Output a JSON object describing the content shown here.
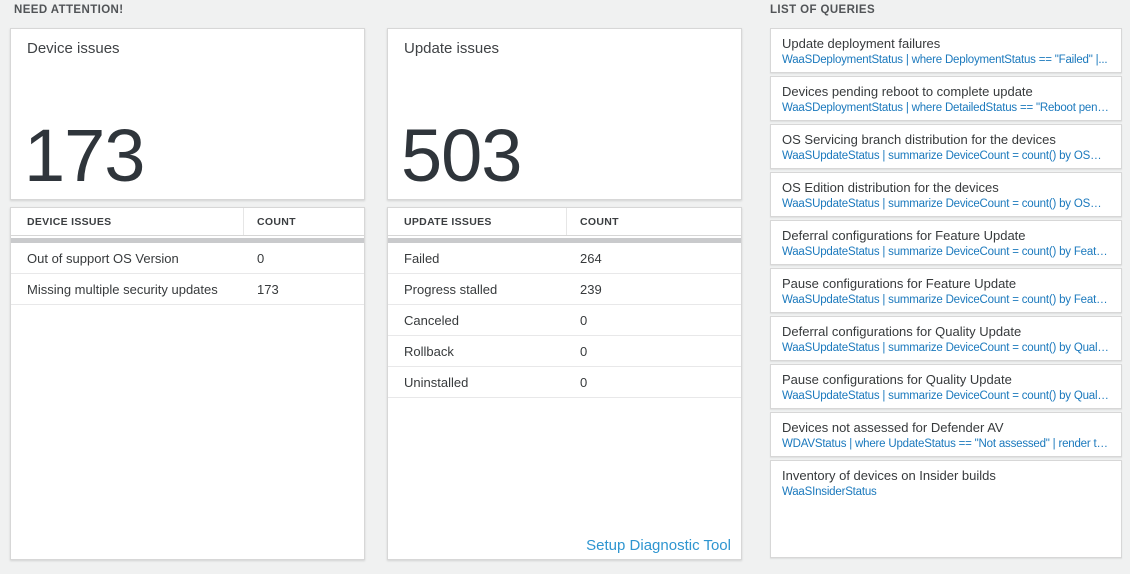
{
  "sections": {
    "need_attention": {
      "label": "NEED ATTENTION!"
    },
    "list_of_queries": {
      "label": "LIST OF QUERIES"
    }
  },
  "device_card": {
    "title": "Device issues",
    "count": "173"
  },
  "device_table": {
    "headers": [
      "DEVICE ISSUES",
      "COUNT"
    ],
    "rows": [
      {
        "label": "Out of support OS Version",
        "count": "0"
      },
      {
        "label": "Missing multiple security updates",
        "count": "173"
      }
    ]
  },
  "update_card": {
    "title": "Update issues",
    "count": "503"
  },
  "update_table": {
    "headers": [
      "UPDATE ISSUES",
      "COUNT"
    ],
    "rows": [
      {
        "label": "Failed",
        "count": "264"
      },
      {
        "label": "Progress stalled",
        "count": "239"
      },
      {
        "label": "Canceled",
        "count": "0"
      },
      {
        "label": "Rollback",
        "count": "0"
      },
      {
        "label": "Uninstalled",
        "count": "0"
      }
    ],
    "link": "Setup Diagnostic Tool"
  },
  "queries": [
    {
      "title": "Update deployment failures",
      "query": "WaaSDeploymentStatus | where DeploymentStatus == \"Failed\" |..."
    },
    {
      "title": "Devices pending reboot to complete update",
      "query": "WaaSDeploymentStatus | where DetailedStatus == \"Reboot pend..."
    },
    {
      "title": "OS Servicing branch distribution for the devices",
      "query": "WaaSUpdateStatus | summarize DeviceCount = count() by OSSer..."
    },
    {
      "title": "OS Edition distribution for the devices",
      "query": "WaaSUpdateStatus | summarize DeviceCount = count() by OSEdit..."
    },
    {
      "title": "Deferral configurations for Feature Update",
      "query": "WaaSUpdateStatus | summarize DeviceCount = count() by Featur..."
    },
    {
      "title": "Pause configurations for Feature Update",
      "query": "WaaSUpdateStatus | summarize DeviceCount = count() by Featur..."
    },
    {
      "title": "Deferral configurations for Quality Update",
      "query": "WaaSUpdateStatus | summarize DeviceCount = count() by Qualit..."
    },
    {
      "title": "Pause configurations for Quality Update",
      "query": "WaaSUpdateStatus | summarize DeviceCount = count() by Qualit..."
    },
    {
      "title": "Devices not assessed for Defender AV",
      "query": "WDAVStatus | where UpdateStatus == \"Not assessed\" | render ta..."
    },
    {
      "title": "Inventory of devices on Insider builds",
      "query": "WaaSInsiderStatus"
    }
  ],
  "colors": {
    "query_blue": "#1b79bd",
    "link_blue": "#2e95d0",
    "number_dark": "#2f353b",
    "page_background": "#f0f1f1"
  }
}
